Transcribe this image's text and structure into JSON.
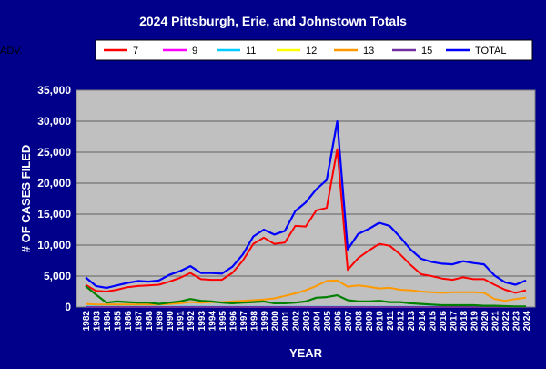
{
  "chart_data": {
    "type": "line",
    "title": "2024 Pittsburgh, Erie, and Johnstown Totals",
    "xlabel": "YEAR",
    "ylabel": "# OF CASES FILED",
    "ylim": [
      0,
      35000
    ],
    "yticks": [
      "0",
      "5,000",
      "10,000",
      "15,000",
      "20,000",
      "25,000",
      "30,000",
      "35,000"
    ],
    "grid": true,
    "legend_position": "top",
    "categories": [
      "1982",
      "1983",
      "1984",
      "1985",
      "1986",
      "1987",
      "1988",
      "1989",
      "1990",
      "1991",
      "1992",
      "1993",
      "1994",
      "1995",
      "1996",
      "1997",
      "1998",
      "1999",
      "2000",
      "2001",
      "2002",
      "2003",
      "2004",
      "2005",
      "2006",
      "2007",
      "2008",
      "2009",
      "2010",
      "2011",
      "2012",
      "2013",
      "2014",
      "2015",
      "2016",
      "2017",
      "2018",
      "2019",
      "2020",
      "2021",
      "2022",
      "2023",
      "2024"
    ],
    "series": [
      {
        "name": "7",
        "color": "#ff0000",
        "values": [
          3600,
          2600,
          2500,
          2800,
          3200,
          3400,
          3500,
          3600,
          4100,
          4700,
          5500,
          4500,
          4400,
          4400,
          5500,
          7500,
          10200,
          11200,
          10200,
          10400,
          13100,
          13000,
          15600,
          16000,
          25500,
          6000,
          7900,
          9100,
          10200,
          9900,
          8500,
          6800,
          5300,
          5000,
          4600,
          4400,
          4800,
          4500,
          4500,
          3600,
          2800,
          2300,
          2700
        ]
      },
      {
        "name": "9",
        "color": "#ff00ff",
        "values": [
          0,
          0,
          0,
          0,
          0,
          0,
          0,
          0,
          0,
          0,
          0,
          0,
          0,
          0,
          0,
          0,
          0,
          0,
          0,
          0,
          0,
          0,
          0,
          0,
          0,
          0,
          0,
          0,
          0,
          0,
          0,
          0,
          0,
          0,
          0,
          0,
          0,
          0,
          0,
          0,
          0,
          0,
          0
        ]
      },
      {
        "name": "11",
        "color": "#00ccff",
        "values": [
          80,
          60,
          50,
          50,
          50,
          50,
          50,
          50,
          50,
          60,
          60,
          60,
          50,
          50,
          50,
          50,
          50,
          50,
          50,
          50,
          50,
          50,
          50,
          50,
          50,
          40,
          40,
          40,
          40,
          40,
          40,
          40,
          40,
          40,
          40,
          40,
          40,
          40,
          40,
          40,
          30,
          30,
          30
        ]
      },
      {
        "name": "12",
        "color": "#ffff00",
        "values": [
          0,
          0,
          0,
          0,
          0,
          0,
          0,
          0,
          0,
          0,
          0,
          0,
          0,
          0,
          0,
          0,
          0,
          0,
          0,
          0,
          0,
          0,
          0,
          0,
          0,
          0,
          0,
          0,
          0,
          0,
          0,
          0,
          0,
          0,
          0,
          0,
          0,
          0,
          0,
          0,
          0,
          0,
          0
        ]
      },
      {
        "name": "13",
        "color": "#ff9900",
        "values": [
          500,
          400,
          400,
          400,
          400,
          400,
          400,
          400,
          500,
          600,
          800,
          700,
          800,
          800,
          900,
          1000,
          1100,
          1200,
          1400,
          1800,
          2200,
          2700,
          3400,
          4200,
          4300,
          3300,
          3500,
          3300,
          3000,
          3100,
          2800,
          2700,
          2500,
          2400,
          2300,
          2400,
          2400,
          2400,
          2300,
          1300,
          1000,
          1300,
          1500
        ]
      },
      {
        "name": "15",
        "color": "#7030a0",
        "values": [
          0,
          0,
          0,
          0,
          0,
          0,
          0,
          0,
          0,
          0,
          0,
          0,
          0,
          0,
          0,
          0,
          0,
          0,
          0,
          0,
          0,
          0,
          0,
          0,
          0,
          0,
          0,
          0,
          0,
          0,
          0,
          0,
          0,
          0,
          0,
          0,
          0,
          0,
          0,
          0,
          0,
          0,
          0
        ]
      },
      {
        "name": "TOTAL",
        "color": "#0000ff",
        "values": [
          4800,
          3400,
          3100,
          3500,
          3900,
          4200,
          4100,
          4300,
          5200,
          5800,
          6600,
          5500,
          5500,
          5400,
          6500,
          8500,
          11400,
          12500,
          11700,
          12300,
          15500,
          16900,
          19000,
          20500,
          30000,
          9300,
          11800,
          12600,
          13600,
          13100,
          11300,
          9300,
          7800,
          7300,
          7000,
          6900,
          7400,
          7100,
          6900,
          5100,
          4000,
          3600,
          4300
        ]
      },
      {
        "name": "ADV.",
        "color": "#008000",
        "values": [
          3400,
          2000,
          700,
          900,
          800,
          700,
          700,
          500,
          700,
          900,
          1300,
          1000,
          900,
          700,
          600,
          700,
          800,
          900,
          600,
          600,
          700,
          900,
          1500,
          1600,
          1900,
          1100,
          900,
          900,
          1000,
          800,
          800,
          600,
          500,
          400,
          300,
          300,
          300,
          300,
          200,
          200,
          150,
          100,
          100
        ]
      }
    ]
  }
}
